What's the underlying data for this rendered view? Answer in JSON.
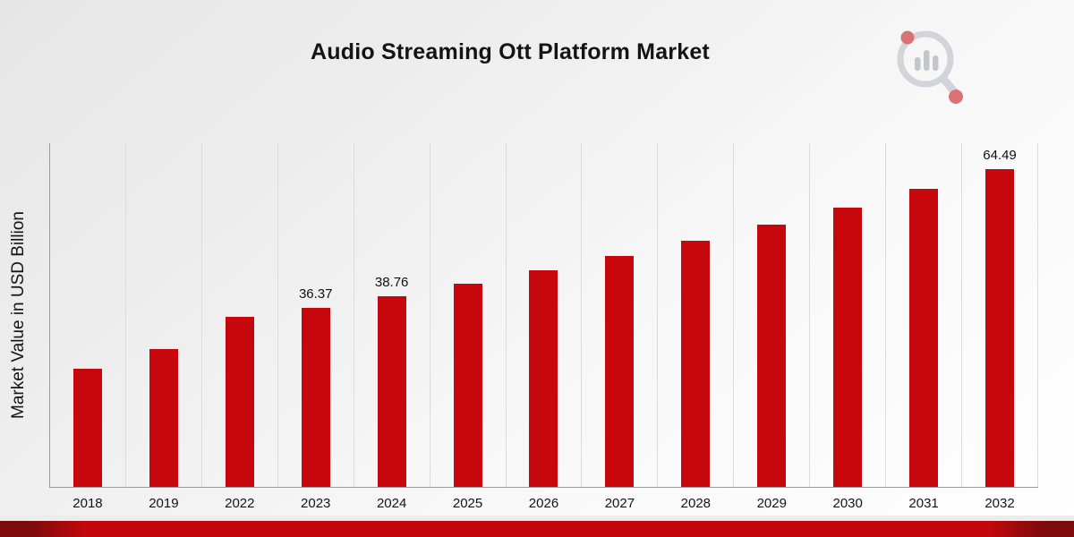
{
  "icons": {
    "logo": "market-research-analytics-magnifier-logo"
  },
  "colors": {
    "bar": "#c6070b",
    "ribbon": "#c3080c",
    "ribbon_dark": "#7e0a0d",
    "gridline": "#dcdcdc",
    "axis": "#9b9b9b"
  },
  "chart_data": {
    "type": "bar",
    "title": "Audio Streaming Ott Platform Market",
    "xlabel": "",
    "ylabel": "Market Value in USD Billion",
    "categories": [
      "2018",
      "2019",
      "2022",
      "2023",
      "2024",
      "2025",
      "2026",
      "2027",
      "2028",
      "2029",
      "2030",
      "2031",
      "2032"
    ],
    "values": [
      24.0,
      28.0,
      34.6,
      36.37,
      38.76,
      41.3,
      44.0,
      46.9,
      50.0,
      53.3,
      56.8,
      60.5,
      64.49
    ],
    "annotations": [
      "",
      "",
      "",
      "36.37",
      "38.76",
      "",
      "",
      "",
      "",
      "",
      "",
      "",
      "64.49"
    ],
    "ylim": [
      0,
      70
    ],
    "grid": "vertical",
    "legend": "none",
    "bar_color": "#c6070b"
  }
}
